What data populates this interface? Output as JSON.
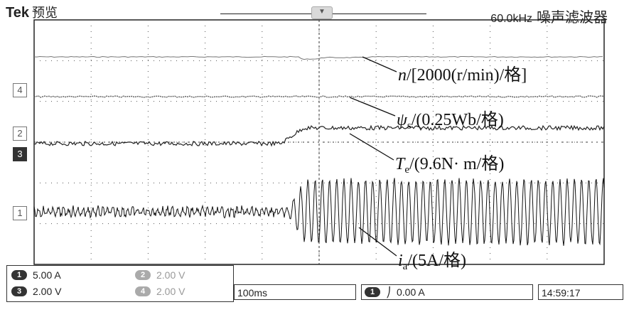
{
  "header": {
    "brand": "Tek",
    "mode": "预览",
    "freq": "60.0kHz",
    "filter": "噪声滤波器"
  },
  "markers": {
    "ch4": "4",
    "ch2": "2",
    "ch3": "3",
    "ch1": "1"
  },
  "annotations": {
    "speed": {
      "var": "n",
      "unit": "/[2000(r/min)/格]"
    },
    "flux": {
      "var": "ψ",
      "sub": "s",
      "unit": "/(0.25Wb/格)"
    },
    "torque": {
      "var": "T",
      "sub": "e",
      "unit": "/(9.6N· m/格)"
    },
    "current": {
      "var": "i",
      "sub": "a",
      "unit": "/(5A/格)"
    }
  },
  "status": {
    "ch1": {
      "num": "1",
      "val": "5.00 A"
    },
    "ch2": {
      "num": "2",
      "val": "2.00 V"
    },
    "ch3": {
      "num": "3",
      "val": "2.00 V"
    },
    "ch4": {
      "num": "4",
      "val": "2.00 V"
    }
  },
  "timebase": "100ms",
  "trigger": {
    "ch": "1",
    "symbol": "⎠",
    "level": "0.00 A"
  },
  "clock": "14:59:17"
}
